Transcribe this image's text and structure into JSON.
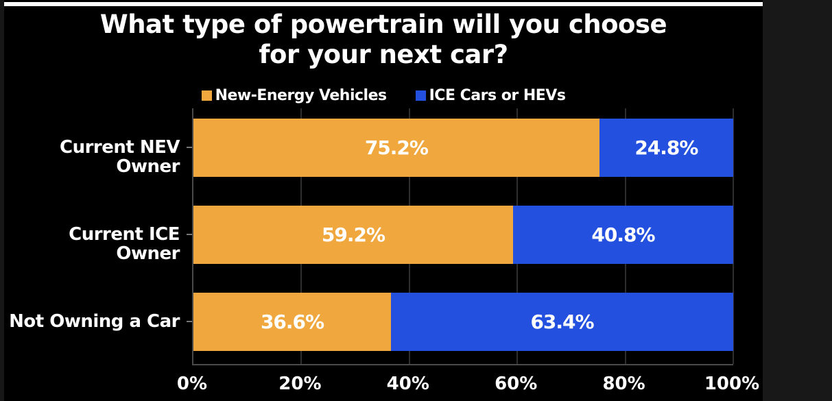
{
  "page": {
    "background": "#000000",
    "left_strip_color": "#171717",
    "right_panel_color": "#181818",
    "top_rule_color": "#ffffff",
    "gridline_color": "#2e2e2e",
    "axis_line_color": "#4a4a4a"
  },
  "title": {
    "line1": "What type of powertrain will you choose",
    "line2": "for your next car?"
  },
  "legend": {
    "items": [
      {
        "label": "New-Energy Vehicles",
        "color": "#EFA73E"
      },
      {
        "label": "ICE Cars or HEVs",
        "color": "#2350DF"
      }
    ]
  },
  "chart_data": {
    "type": "bar",
    "orientation": "horizontal",
    "stacked": true,
    "title": "What type of powertrain will you choose for your next car?",
    "categories": [
      "Current NEV Owner",
      "Current ICE Owner",
      "Not Owning a Car"
    ],
    "series": [
      {
        "name": "New-Energy Vehicles",
        "color": "#EFA73E",
        "values": [
          75.2,
          59.2,
          36.6
        ]
      },
      {
        "name": "ICE Cars or HEVs",
        "color": "#2350DF",
        "values": [
          24.8,
          40.8,
          63.4
        ]
      }
    ],
    "value_labels": [
      [
        "75.2%",
        "24.8%"
      ],
      [
        "59.2%",
        "40.8%"
      ],
      [
        "36.6%",
        "63.4%"
      ]
    ],
    "x_ticks": [
      0,
      20,
      40,
      60,
      80,
      100
    ],
    "x_tick_labels": [
      "0%",
      "20%",
      "40%",
      "60%",
      "80%",
      "100%"
    ],
    "xlim": [
      0,
      100
    ],
    "grid": true,
    "legend_position": "top",
    "value_label_color": "#ffffff"
  }
}
